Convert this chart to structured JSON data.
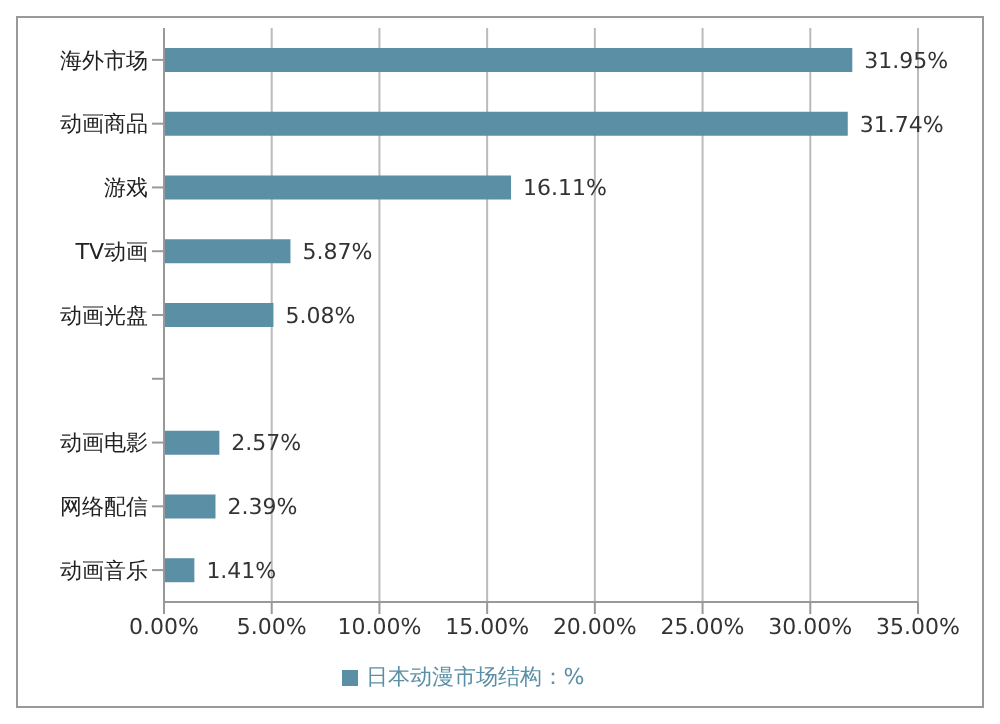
{
  "chart_data": {
    "type": "bar",
    "orientation": "horizontal",
    "categories": [
      "海外市场",
      "动画商品",
      "游戏",
      "TV动画",
      "动画光盘",
      null,
      "动画电影",
      "网络配信",
      "动画音乐"
    ],
    "series": [
      {
        "name": "日本动漫市场结构：%",
        "color": "#5b8fa6",
        "values": [
          31.95,
          31.74,
          16.11,
          5.87,
          5.08,
          null,
          2.57,
          2.39,
          1.41
        ],
        "value_labels": [
          "31.95%",
          "31.74%",
          "16.11%",
          "5.87%",
          "5.08%",
          null,
          "2.57%",
          "2.39%",
          "1.41%"
        ]
      }
    ],
    "xlim": [
      0,
      35
    ],
    "xticks": [
      {
        "value": 0,
        "label": "0.00%"
      },
      {
        "value": 5,
        "label": "5.00%"
      },
      {
        "value": 10,
        "label": "10.00%"
      },
      {
        "value": 15,
        "label": "15.00%"
      },
      {
        "value": 20,
        "label": "20.00%"
      },
      {
        "value": 25,
        "label": "25.00%"
      },
      {
        "value": 30,
        "label": "30.00%"
      },
      {
        "value": 35,
        "label": "35.00%"
      }
    ],
    "grid": "x",
    "legend": "bottom"
  }
}
